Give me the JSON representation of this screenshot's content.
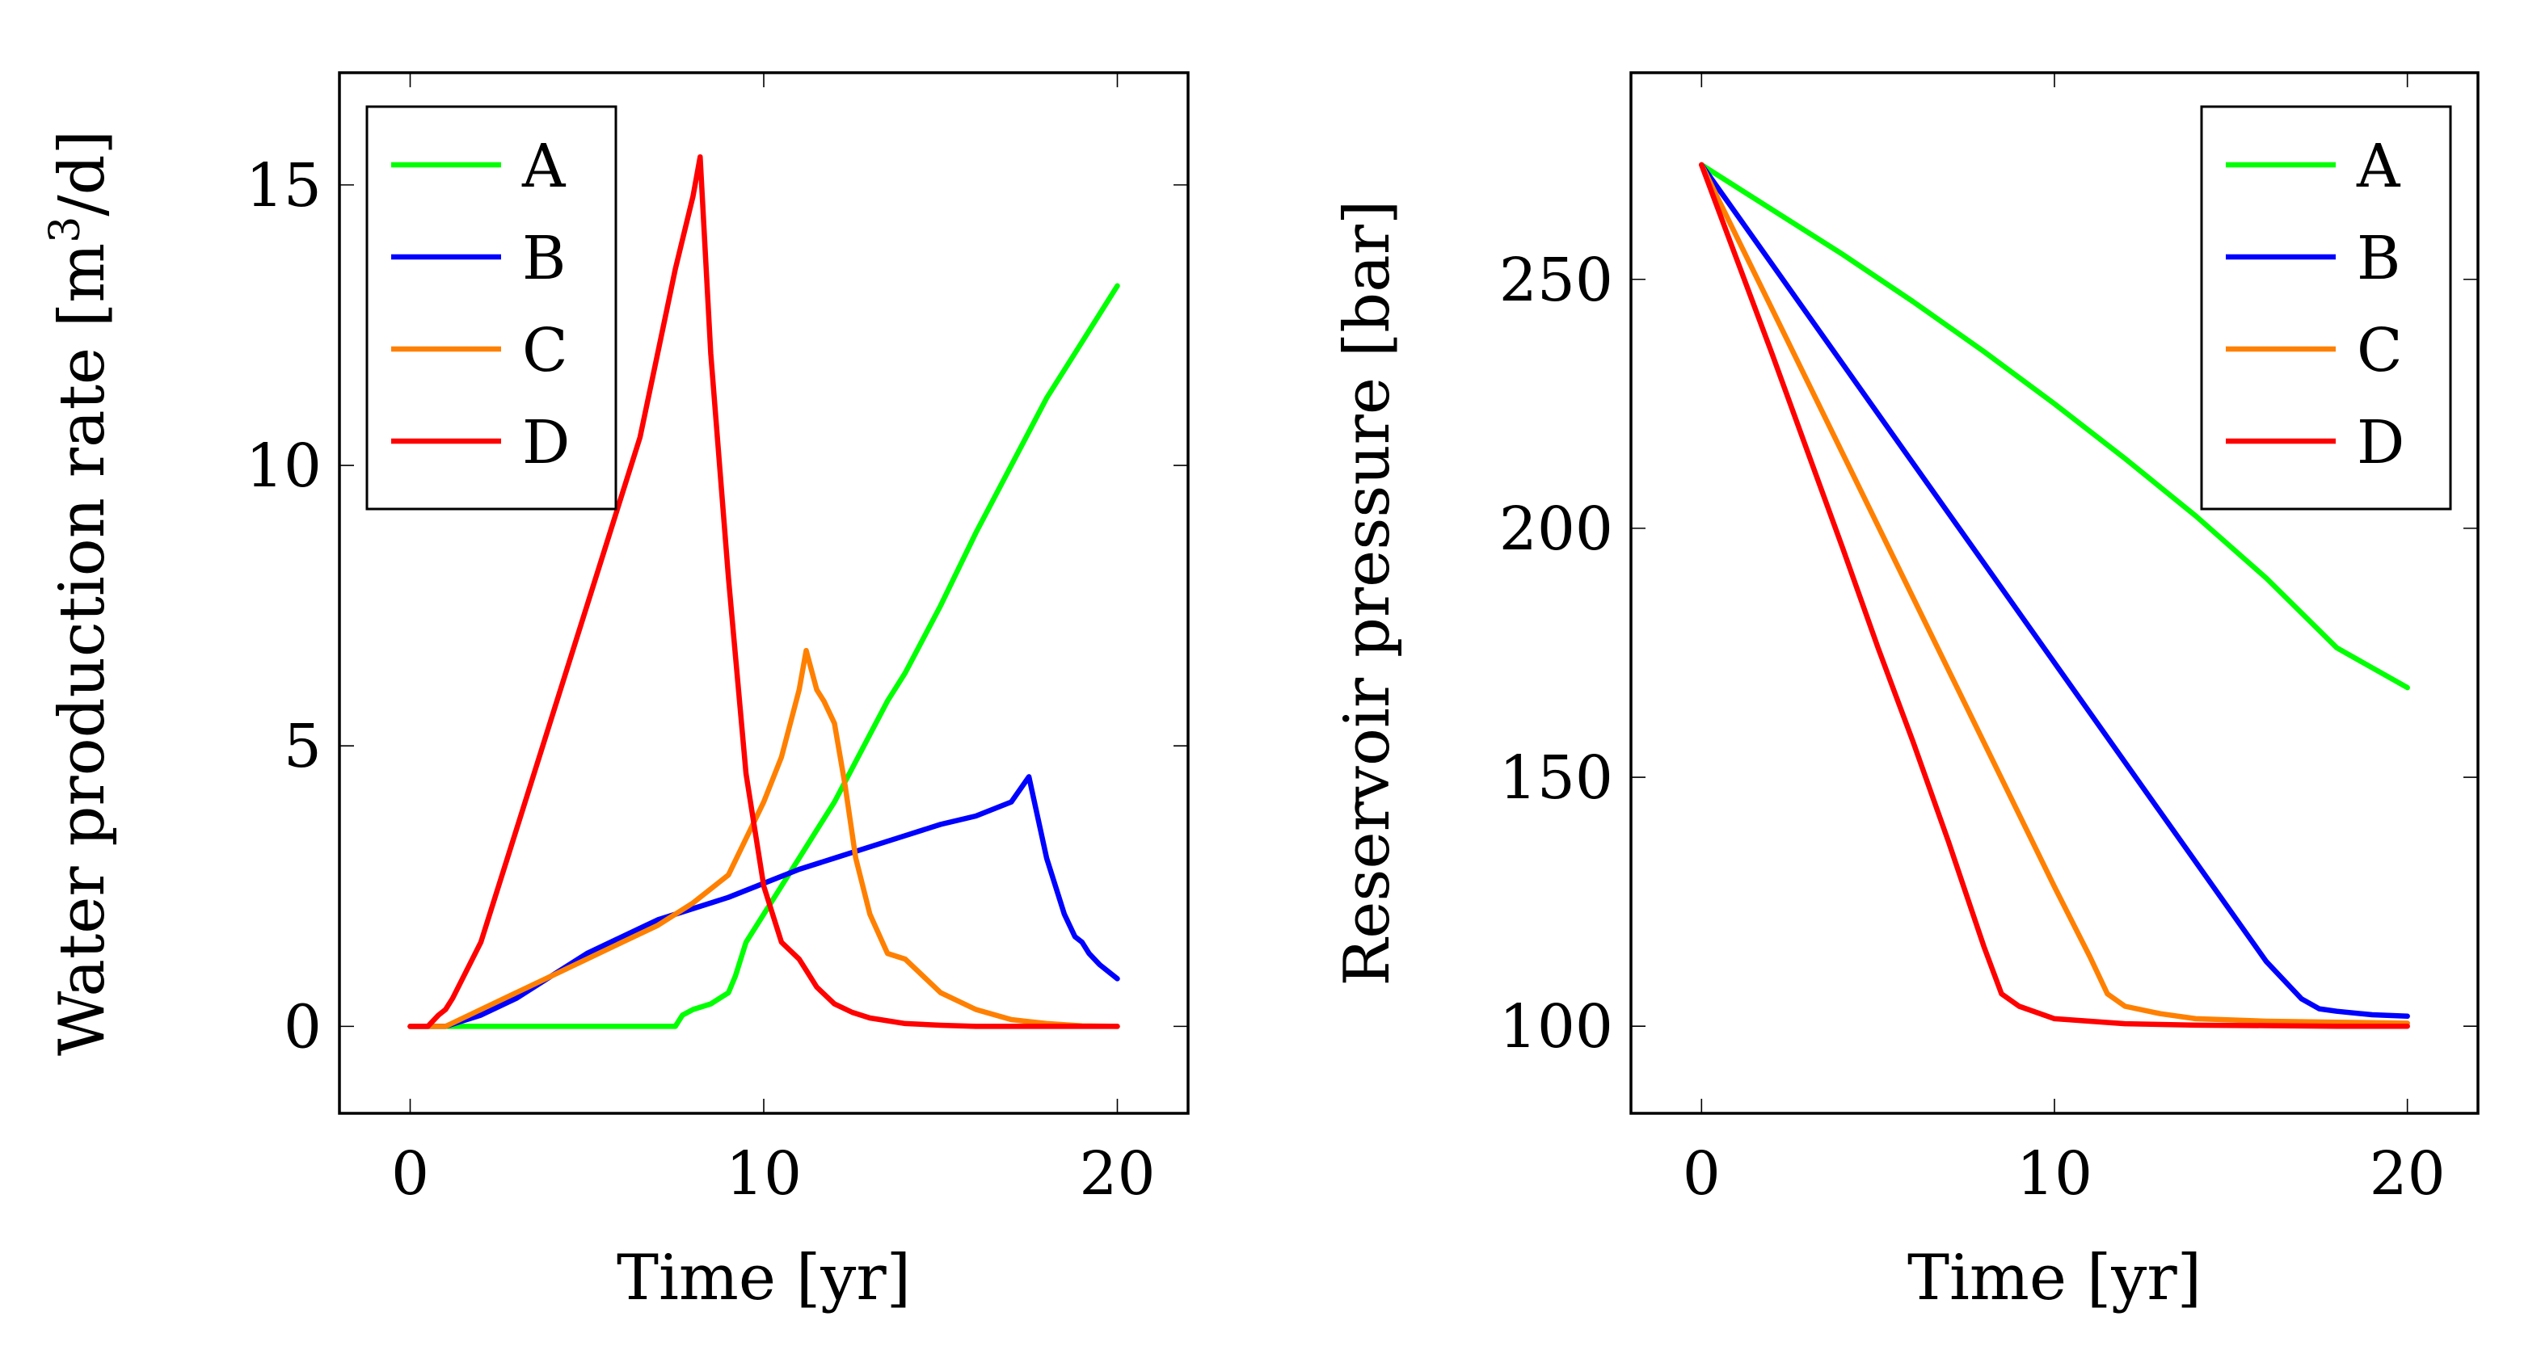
{
  "colors": {
    "A": "#00ff00",
    "B": "#0000ff",
    "C": "#ff8000",
    "D": "#ff0000"
  },
  "chart_data": [
    {
      "type": "line",
      "xlabel": "Time [yr]",
      "ylabel_main": "Water production rate [m",
      "ylabel_sup": "3",
      "ylabel_tail": "/d]",
      "xlim": [
        -2,
        22
      ],
      "ylim": [
        -1.55,
        17
      ],
      "xticks": [
        0,
        10,
        20
      ],
      "yticks": [
        0,
        5,
        10,
        15
      ],
      "legend_position": "top-left",
      "series": [
        {
          "name": "A",
          "color_key": "A",
          "x": [
            0,
            1,
            2,
            3,
            4,
            5,
            6,
            7,
            7.5,
            7.7,
            8,
            8.5,
            9,
            9.2,
            9.5,
            9.7,
            10,
            10.5,
            11,
            11.5,
            12,
            12.5,
            13,
            13.5,
            14,
            15,
            16,
            17,
            18,
            19,
            20
          ],
          "y": [
            0,
            0,
            0,
            0,
            0,
            0,
            0,
            0,
            0,
            0.2,
            0.3,
            0.4,
            0.6,
            0.9,
            1.5,
            1.7,
            2.0,
            2.5,
            3.0,
            3.5,
            4.0,
            4.6,
            5.2,
            5.8,
            6.3,
            7.5,
            8.8,
            10.0,
            11.2,
            12.2,
            13.2
          ]
        },
        {
          "name": "B",
          "color_key": "B",
          "x": [
            0,
            0.7,
            1,
            1.5,
            2,
            3,
            4,
            5,
            6,
            7,
            8,
            9,
            10,
            11,
            12,
            13,
            14,
            15,
            16,
            17,
            17.5,
            18,
            18.5,
            18.8,
            19,
            19.2,
            19.5,
            20
          ],
          "y": [
            0,
            0,
            0,
            0.1,
            0.2,
            0.5,
            0.9,
            1.3,
            1.6,
            1.9,
            2.1,
            2.3,
            2.55,
            2.8,
            3.0,
            3.2,
            3.4,
            3.6,
            3.75,
            4.0,
            4.45,
            3.0,
            2.0,
            1.6,
            1.5,
            1.3,
            1.1,
            0.85
          ]
        },
        {
          "name": "C",
          "color_key": "C",
          "x": [
            0,
            0.6,
            1,
            2,
            3,
            4,
            5,
            6,
            7,
            8,
            9,
            10,
            10.5,
            11,
            11.2,
            11.5,
            11.7,
            12,
            12.3,
            12.6,
            13,
            13.5,
            14,
            14.5,
            15,
            16,
            17,
            18,
            19,
            20
          ],
          "y": [
            0,
            0,
            0,
            0.3,
            0.6,
            0.9,
            1.2,
            1.5,
            1.8,
            2.2,
            2.7,
            4.0,
            4.8,
            6.0,
            6.7,
            6.0,
            5.8,
            5.4,
            4.3,
            3.0,
            2.0,
            1.3,
            1.2,
            0.9,
            0.6,
            0.3,
            0.12,
            0.05,
            0.01,
            0
          ]
        },
        {
          "name": "D",
          "color_key": "D",
          "x": [
            0,
            0.5,
            0.8,
            1,
            1.2,
            2,
            3,
            4,
            5,
            6,
            6.5,
            7,
            7.5,
            8,
            8.2,
            8.5,
            9,
            9.5,
            10,
            10.5,
            11,
            11.2,
            11.5,
            12,
            12.5,
            13,
            14,
            15,
            16,
            18,
            20
          ],
          "y": [
            0,
            0,
            0.2,
            0.3,
            0.5,
            1.5,
            3.5,
            5.5,
            7.5,
            9.5,
            10.5,
            12.0,
            13.5,
            14.8,
            15.5,
            12.0,
            8.0,
            4.5,
            2.5,
            1.5,
            1.2,
            1.0,
            0.7,
            0.4,
            0.25,
            0.15,
            0.05,
            0.02,
            0,
            0,
            0
          ]
        }
      ]
    },
    {
      "type": "line",
      "xlabel": "Time [yr]",
      "ylabel_main": "Reservoir pressure [bar]",
      "ylabel_sup": "",
      "ylabel_tail": "",
      "xlim": [
        -2,
        22
      ],
      "ylim": [
        82.5,
        291.5
      ],
      "xticks": [
        0,
        10,
        20
      ],
      "yticks": [
        100,
        150,
        200,
        250
      ],
      "legend_position": "top-right",
      "series": [
        {
          "name": "A",
          "color_key": "A",
          "x": [
            0,
            2,
            4,
            6,
            8,
            10,
            12,
            14,
            16,
            18,
            20
          ],
          "y": [
            273,
            264,
            255,
            245.5,
            235.5,
            225,
            214,
            202.5,
            190,
            176,
            168
          ]
        },
        {
          "name": "B",
          "color_key": "B",
          "x": [
            0,
            2,
            4,
            6,
            8,
            10,
            12,
            14,
            16,
            17,
            17.5,
            18,
            19,
            20
          ],
          "y": [
            273,
            253,
            233,
            213,
            193,
            173,
            153,
            133,
            113,
            105.5,
            103.5,
            103,
            102.3,
            102
          ]
        },
        {
          "name": "C",
          "color_key": "C",
          "x": [
            0,
            2,
            4,
            6,
            8,
            10,
            11,
            11.5,
            12,
            13,
            14,
            16,
            18,
            20
          ],
          "y": [
            273,
            244,
            215,
            186,
            157,
            128,
            114,
            106.5,
            104,
            102.5,
            101.5,
            101,
            100.8,
            100.6
          ]
        },
        {
          "name": "D",
          "color_key": "D",
          "x": [
            0,
            1,
            2,
            3,
            4,
            5,
            6,
            7,
            8,
            8.5,
            9,
            10,
            12,
            14,
            16,
            18,
            20
          ],
          "y": [
            273,
            254,
            235,
            215.5,
            196,
            176,
            157,
            137,
            116,
            106.5,
            104,
            101.5,
            100.5,
            100.2,
            100.1,
            100,
            100
          ]
        }
      ]
    }
  ]
}
